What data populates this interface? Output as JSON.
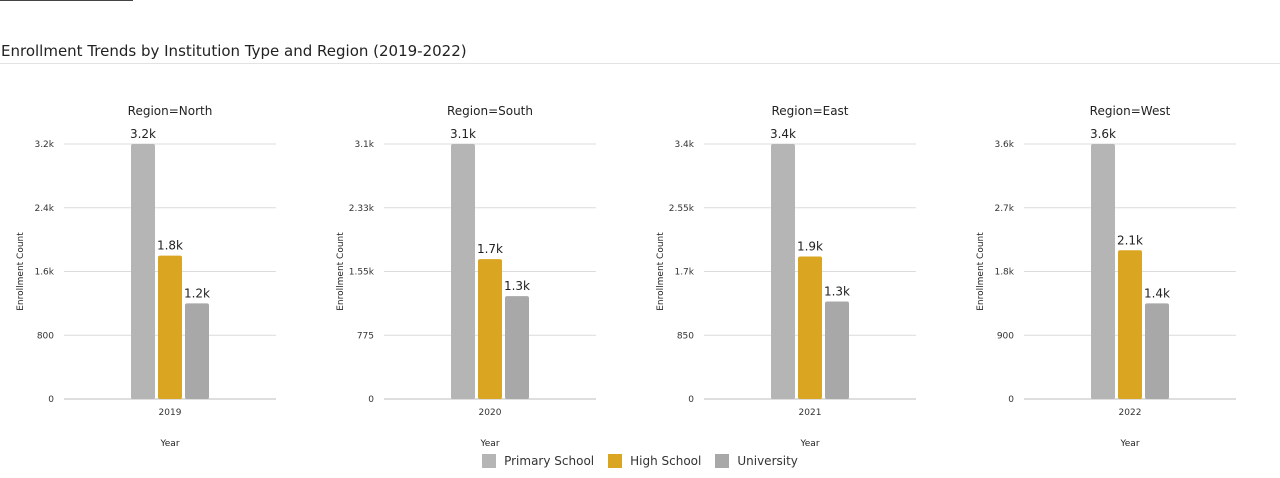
{
  "title": "Enrollment Trends by Institution Type and Region (2019-2022)",
  "colors": {
    "Primary School": "#b5b5b5",
    "High School": "#daa520",
    "University": "#a8a8a8"
  },
  "chart_data": [
    {
      "type": "bar",
      "panel_title": "Region=North",
      "categories": [
        "2019"
      ],
      "series": [
        {
          "name": "Primary School",
          "values": [
            3200
          ],
          "label": "3.2k"
        },
        {
          "name": "High School",
          "values": [
            1800
          ],
          "label": "1.8k"
        },
        {
          "name": "University",
          "values": [
            1200
          ],
          "label": "1.2k"
        }
      ],
      "ylim": [
        0,
        3200
      ],
      "yticks": [
        0,
        800,
        1600,
        2400,
        3200
      ],
      "ytick_labels": [
        "0",
        "800",
        "1.6k",
        "2.4k",
        "3.2k"
      ],
      "xlabel": "Year",
      "ylabel": "Enrollment Count"
    },
    {
      "type": "bar",
      "panel_title": "Region=South",
      "categories": [
        "2020"
      ],
      "series": [
        {
          "name": "Primary School",
          "values": [
            3100
          ],
          "label": "3.1k"
        },
        {
          "name": "High School",
          "values": [
            1700
          ],
          "label": "1.7k"
        },
        {
          "name": "University",
          "values": [
            1250
          ],
          "label": "1.3k"
        }
      ],
      "ylim": [
        0,
        3100
      ],
      "yticks": [
        0,
        775,
        1550,
        2325,
        3100
      ],
      "ytick_labels": [
        "0",
        "775",
        "1.55k",
        "2.33k",
        "3.1k"
      ],
      "xlabel": "Year",
      "ylabel": "Enrollment Count"
    },
    {
      "type": "bar",
      "panel_title": "Region=East",
      "categories": [
        "2021"
      ],
      "series": [
        {
          "name": "Primary School",
          "values": [
            3400
          ],
          "label": "3.4k"
        },
        {
          "name": "High School",
          "values": [
            1900
          ],
          "label": "1.9k"
        },
        {
          "name": "University",
          "values": [
            1300
          ],
          "label": "1.3k"
        }
      ],
      "ylim": [
        0,
        3400
      ],
      "yticks": [
        0,
        850,
        1700,
        2550,
        3400
      ],
      "ytick_labels": [
        "0",
        "850",
        "1.7k",
        "2.55k",
        "3.4k"
      ],
      "xlabel": "Year",
      "ylabel": "Enrollment Count"
    },
    {
      "type": "bar",
      "panel_title": "Region=West",
      "categories": [
        "2022"
      ],
      "series": [
        {
          "name": "Primary School",
          "values": [
            3600
          ],
          "label": "3.6k"
        },
        {
          "name": "High School",
          "values": [
            2100
          ],
          "label": "2.1k"
        },
        {
          "name": "University",
          "values": [
            1350
          ],
          "label": "1.4k"
        }
      ],
      "ylim": [
        0,
        3600
      ],
      "yticks": [
        0,
        900,
        1800,
        2700,
        3600
      ],
      "ytick_labels": [
        "0",
        "900",
        "1.8k",
        "2.7k",
        "3.6k"
      ],
      "xlabel": "Year",
      "ylabel": "Enrollment Count"
    }
  ],
  "legend": {
    "items": [
      {
        "label": "Primary School"
      },
      {
        "label": "High School"
      },
      {
        "label": "University"
      }
    ]
  }
}
